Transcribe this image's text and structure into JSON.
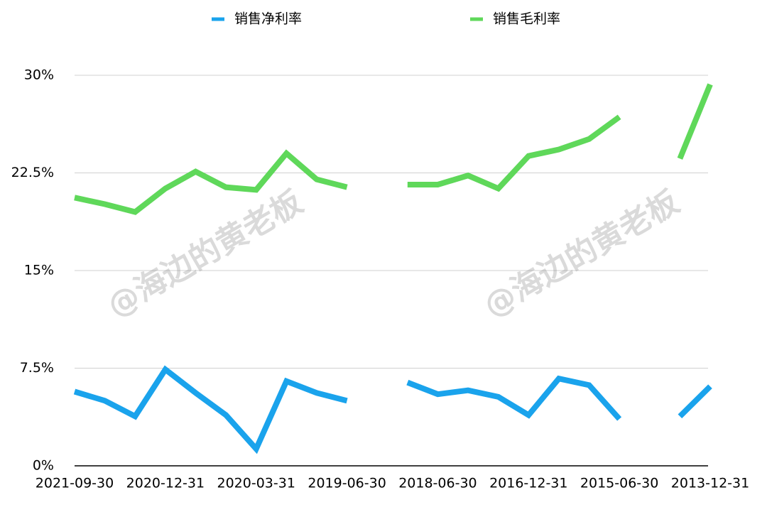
{
  "chart_data": {
    "type": "line",
    "categories": [
      "2021-09-30",
      null,
      null,
      "2020-12-31",
      null,
      null,
      "2020-03-31",
      null,
      null,
      "2019-06-30",
      null,
      null,
      "2018-06-30",
      null,
      null,
      "2016-12-31",
      null,
      null,
      "2015-06-30",
      null,
      null,
      "2013-12-31"
    ],
    "series": [
      {
        "name": "销售净利率",
        "color": "#1aa3ec",
        "values": [
          5.7,
          5.0,
          3.8,
          7.4,
          5.6,
          3.9,
          1.3,
          6.5,
          5.6,
          5.0,
          null,
          6.4,
          5.5,
          5.8,
          5.3,
          3.9,
          6.7,
          6.2,
          3.6,
          null,
          3.8,
          6.1
        ]
      },
      {
        "name": "销售毛利率",
        "color": "#5fd85a",
        "values": [
          20.6,
          20.1,
          19.5,
          21.3,
          22.6,
          21.4,
          21.2,
          24.0,
          22.0,
          21.4,
          null,
          21.6,
          21.6,
          22.3,
          21.3,
          23.8,
          24.3,
          25.1,
          26.8,
          null,
          23.6,
          29.3
        ]
      }
    ],
    "ylim": [
      0,
      30
    ],
    "yticks": [
      {
        "value": 0,
        "label": "0%"
      },
      {
        "value": 7.5,
        "label": "7.5%"
      },
      {
        "value": 15,
        "label": "15%"
      },
      {
        "value": 22.5,
        "label": "22.5%"
      },
      {
        "value": 30,
        "label": "30%"
      }
    ],
    "grid": true,
    "legend": "top",
    "annotations": [
      "@海边的黄老板",
      "@海边的黄老板"
    ]
  }
}
